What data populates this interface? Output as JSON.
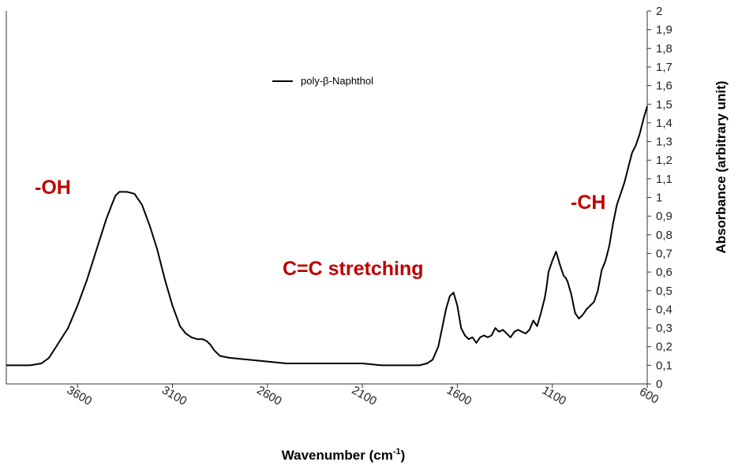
{
  "chart_data": {
    "type": "line",
    "title": "",
    "xlabel": "Wavenumber (cm",
    "xlabel_sup": "-1",
    "xlabel_close": ")",
    "ylabel": "Absorbance (arbitrary unit)",
    "xlim": [
      3975,
      600
    ],
    "ylim": [
      0,
      2
    ],
    "x_reversed": true,
    "xticks": [
      3600,
      3100,
      2600,
      2100,
      1600,
      1100,
      600
    ],
    "yticks": [
      "0",
      "0,1",
      "0,2",
      "0,3",
      "0,4",
      "0,5",
      "0,6",
      "0,7",
      "0,8",
      "0,9",
      "1",
      "1,1",
      "1,2",
      "1,3",
      "1,4",
      "1,5",
      "1,6",
      "1,7",
      "1,8",
      "1,9",
      "2"
    ],
    "grid": false,
    "legend_position": "top-center",
    "series": [
      {
        "name": "poly-β-Naphthol",
        "color": "#000000",
        "x": [
          3975,
          3850,
          3790,
          3750,
          3700,
          3650,
          3600,
          3550,
          3500,
          3450,
          3420,
          3400,
          3380,
          3340,
          3300,
          3260,
          3220,
          3180,
          3140,
          3100,
          3060,
          3030,
          3000,
          2970,
          2940,
          2920,
          2900,
          2880,
          2850,
          2800,
          2700,
          2600,
          2500,
          2400,
          2300,
          2200,
          2100,
          2000,
          1900,
          1850,
          1800,
          1760,
          1730,
          1700,
          1680,
          1660,
          1640,
          1620,
          1600,
          1580,
          1560,
          1540,
          1520,
          1500,
          1480,
          1460,
          1440,
          1420,
          1400,
          1380,
          1360,
          1340,
          1320,
          1300,
          1280,
          1260,
          1240,
          1220,
          1200,
          1180,
          1160,
          1140,
          1130,
          1120,
          1100,
          1080,
          1060,
          1040,
          1030,
          1020,
          1000,
          980,
          960,
          940,
          920,
          900,
          880,
          860,
          840,
          820,
          800,
          780,
          760,
          740,
          720,
          700,
          680,
          660,
          640,
          620,
          600
        ],
        "y": [
          0.1,
          0.1,
          0.11,
          0.14,
          0.22,
          0.3,
          0.42,
          0.56,
          0.72,
          0.88,
          0.96,
          1.01,
          1.03,
          1.03,
          1.02,
          0.96,
          0.85,
          0.72,
          0.56,
          0.42,
          0.31,
          0.27,
          0.25,
          0.24,
          0.24,
          0.23,
          0.21,
          0.18,
          0.15,
          0.14,
          0.13,
          0.12,
          0.11,
          0.11,
          0.11,
          0.11,
          0.11,
          0.1,
          0.1,
          0.1,
          0.1,
          0.11,
          0.13,
          0.2,
          0.3,
          0.4,
          0.47,
          0.49,
          0.42,
          0.3,
          0.26,
          0.24,
          0.25,
          0.22,
          0.25,
          0.26,
          0.25,
          0.26,
          0.3,
          0.28,
          0.29,
          0.27,
          0.25,
          0.28,
          0.29,
          0.28,
          0.27,
          0.29,
          0.34,
          0.31,
          0.38,
          0.46,
          0.52,
          0.6,
          0.66,
          0.71,
          0.64,
          0.58,
          0.57,
          0.55,
          0.48,
          0.38,
          0.35,
          0.37,
          0.4,
          0.42,
          0.44,
          0.5,
          0.61,
          0.66,
          0.74,
          0.86,
          0.96,
          1.02,
          1.08,
          1.16,
          1.24,
          1.28,
          1.34,
          1.42,
          1.49
        ]
      }
    ],
    "annotations": [
      {
        "text": "-OH",
        "color": "#c00000",
        "x": 3850,
        "y": 1.04
      },
      {
        "text": "C=C stretching",
        "color": "#c00000",
        "x": 1950,
        "y": 0.59
      },
      {
        "text": "-CH",
        "color": "#c00000",
        "x": 920,
        "y": 0.93
      }
    ]
  }
}
